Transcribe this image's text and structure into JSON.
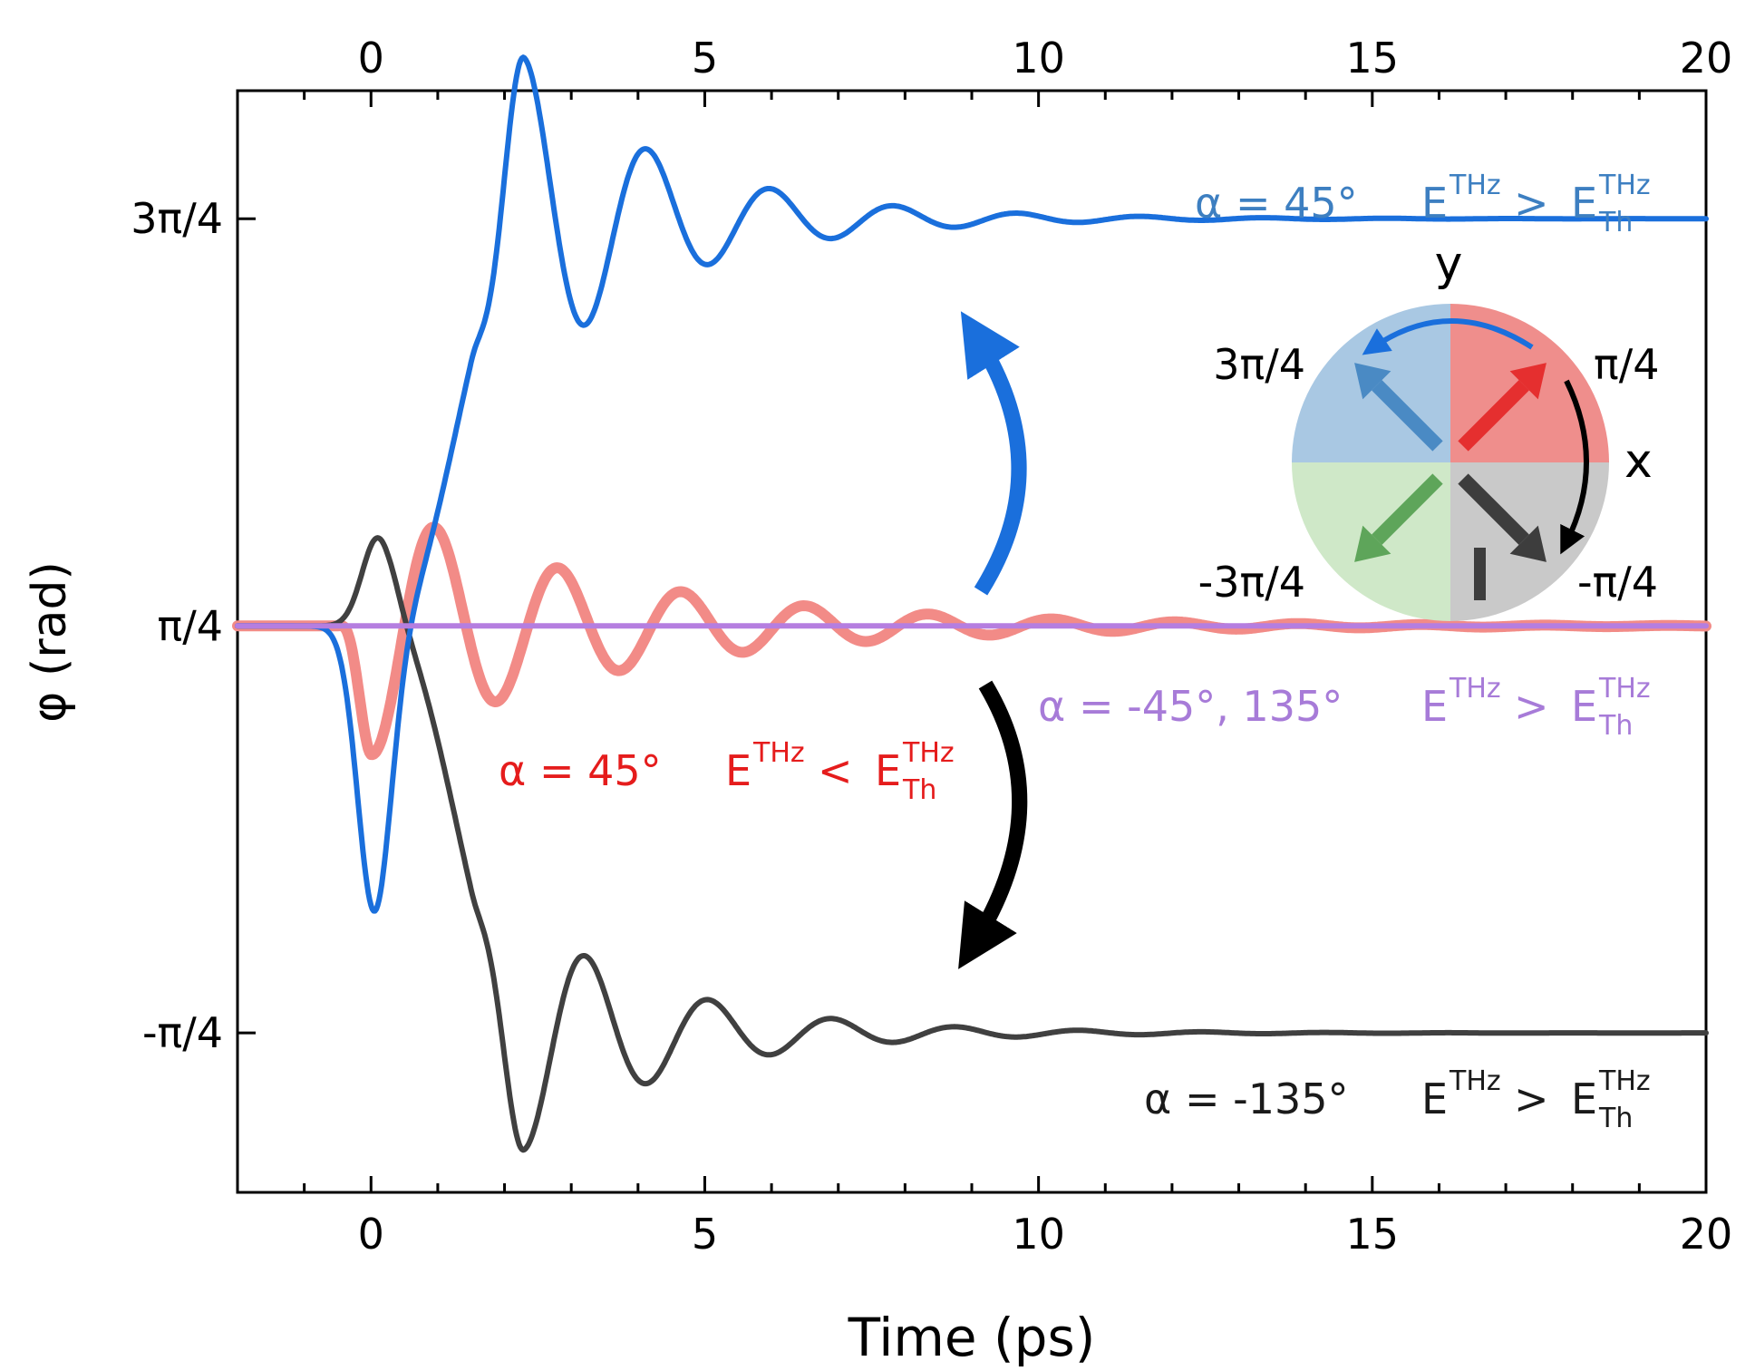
{
  "chart_data": {
    "type": "line",
    "title": "",
    "xlabel": "Time (ps)",
    "ylabel": "φ (rad)",
    "xlim": [
      -2,
      20
    ],
    "ylim": [
      -1.4,
      2.85
    ],
    "x_ticks": [
      0,
      5,
      10,
      15,
      20
    ],
    "x_tick_labels": [
      "0",
      "5",
      "10",
      "15",
      "20"
    ],
    "y_ticks": [
      2.356,
      0.785,
      -0.785
    ],
    "y_tick_labels": [
      "3π/4",
      "π/4",
      "-π/4"
    ],
    "series": [
      {
        "name": "α = 45° E^THz < E_Th^THz",
        "color": "#f28b87",
        "baseline": 0.785,
        "amplitude": 0.5,
        "period": 1.85,
        "tau": 3.5,
        "sign": 1
      },
      {
        "name": "α = -45°, 135° E^THz > E_Th^THz",
        "color": "#b57ee0",
        "baseline": 0.785
      },
      {
        "name": "α = 45° E^THz > E_Th^THz",
        "color": "#1a6fdc",
        "start": 0.785,
        "end": 2.356,
        "dip": -0.3,
        "peak": 2.95,
        "period": 1.85,
        "tau": 2.2
      },
      {
        "name": "α = -135° E^THz > E_Th^THz",
        "color": "#404040",
        "start": 0.785,
        "end": -0.785,
        "bump": 1.12,
        "trough": -1.23,
        "period": 1.85,
        "tau": 2.2
      }
    ],
    "annotations": {
      "blue": {
        "prefix": "α = 45°",
        "E": "E",
        "sup": "THz",
        "rel": ">",
        "E2": "E",
        "sup2": "THz",
        "sub2": "Th",
        "color": "#3d7fc1"
      },
      "red": {
        "prefix": "α = 45°",
        "E": "E",
        "sup": "THz",
        "rel": "<",
        "E2": "E",
        "sup2": "THz",
        "sub2": "Th",
        "color": "#e51c1c"
      },
      "purple": {
        "prefix": "α = -45°, 135°",
        "E": "E",
        "sup": "THz",
        "rel": ">",
        "E2": "E",
        "sup2": "THz",
        "sub2": "Th",
        "color": "#a77bd8"
      },
      "black": {
        "prefix": "α = -135°",
        "E": "E",
        "sup": "THz",
        "rel": ">",
        "E2": "E",
        "sup2": "THz",
        "sub2": "Th",
        "color": "#1a1a1a"
      }
    },
    "inset": {
      "axis_y": "y",
      "axis_x": "x",
      "labels": [
        "3π/4",
        "π/4",
        "-3π/4",
        "-π/4"
      ],
      "quadrant_colors": {
        "top_left": "#a9c8e3",
        "top_right": "#ef8e8c",
        "bottom_left": "#cfe8c8",
        "bottom_right": "#c9c9c9"
      },
      "arrow_colors": {
        "top_left": "#4a8ac4",
        "top_right": "#e52f2f",
        "bottom_left": "#5ea55a",
        "bottom_right": "#3d3d3d"
      }
    }
  }
}
